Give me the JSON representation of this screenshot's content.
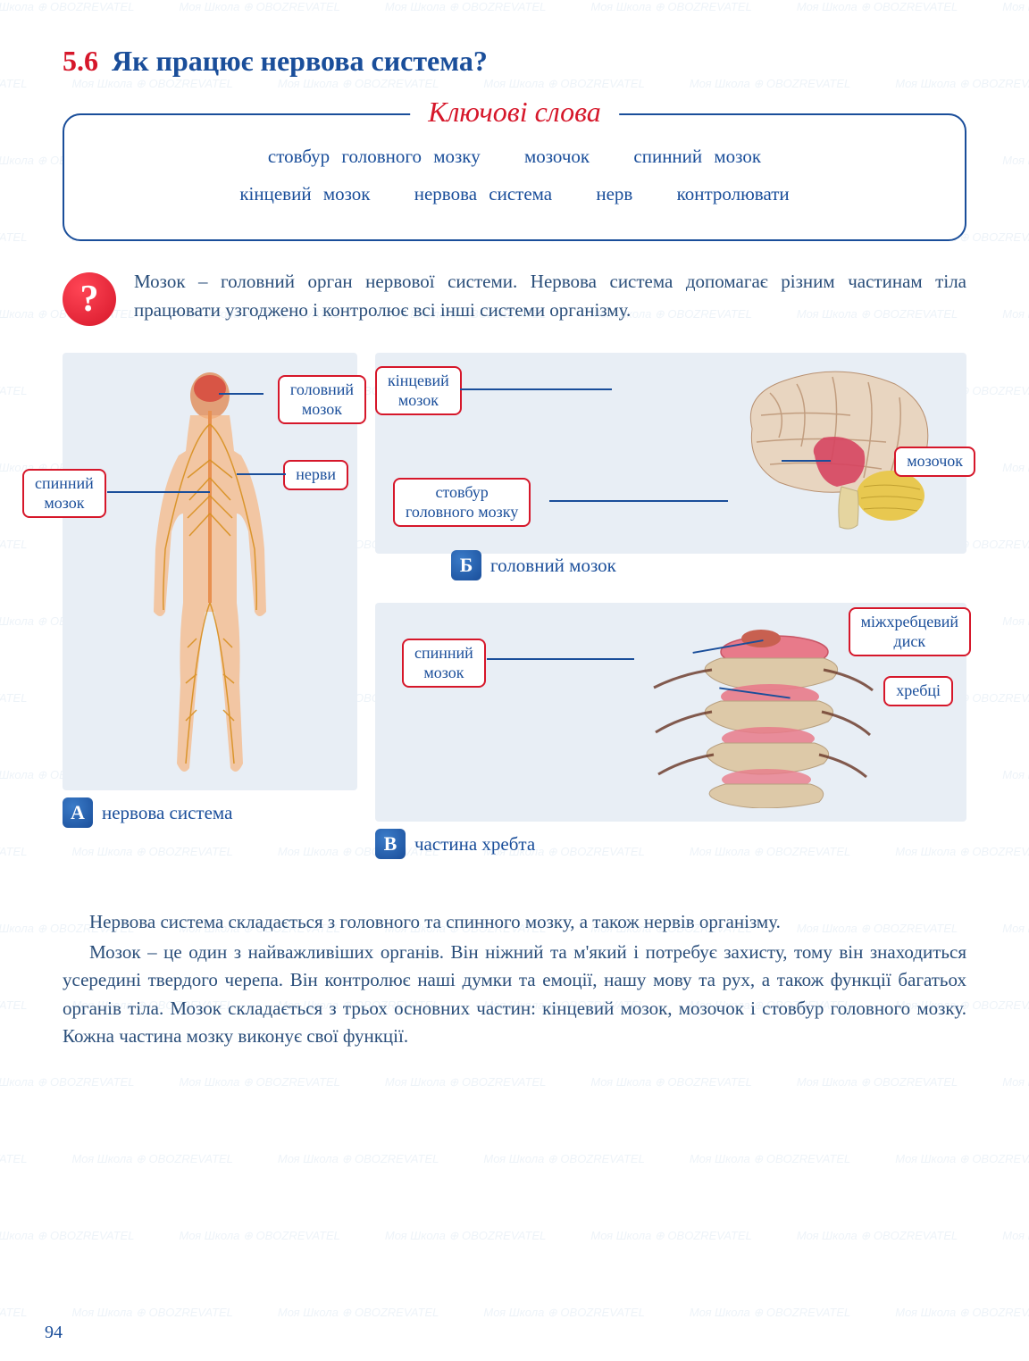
{
  "section": {
    "number": "5.6",
    "title": "Як працює нервова система?"
  },
  "keywords": {
    "title": "Ключові слова",
    "line1": {
      "w1": "стовбур головного мозку",
      "w2": "мозочок",
      "w3": "спинний мозок"
    },
    "line2": {
      "w1": "кінцевий мозок",
      "w2": "нервова система",
      "w3": "нерв",
      "w4": "контролювати"
    }
  },
  "qmark": "?",
  "intro": "Мозок – головний орган нервової системи. Нервова система допомагає різним частинам тіла працювати узгоджено і контролює всі інші системи організму.",
  "diagramA": {
    "badge": "А",
    "caption": "нервова система",
    "labels": {
      "brain": "головний\nмозок",
      "spinal": "спинний\nмозок",
      "nerves": "нерви"
    },
    "colors": {
      "body_outline": "#f5b887",
      "nerves": "#d89020",
      "brain": "#e07040",
      "spine": "#e89050"
    }
  },
  "diagramB": {
    "badge": "Б",
    "caption": "головний мозок",
    "labels": {
      "forebrain": "кінцевий\nмозок",
      "brainstem": "стовбур\nголовного мозку",
      "cerebellum": "мозочок"
    },
    "colors": {
      "cerebrum": "#e8d5c0",
      "cerebrum_line": "#b89070",
      "inner": "#d64560",
      "cerebellum": "#e8c850",
      "stem": "#e5d5a0"
    }
  },
  "diagramC": {
    "badge": "В",
    "caption": "частина хребта",
    "labels": {
      "spinal": "спинний\nмозок",
      "disc": "міжхребцевий\nдиск",
      "vertebrae": "хребці"
    },
    "colors": {
      "bone": "#ddc9a8",
      "bone_dark": "#b8a080",
      "disc": "#e87a8a",
      "cord": "#c86050",
      "nerve": "#704030"
    }
  },
  "paragraphs": {
    "p1": "Нервова система складається з головного та спинного мозку, а також нервів організму.",
    "p2": "Мозок – це один з найважливіших органів. Він ніжний та м'який і потребує захисту, тому він знаходиться усередині твердого черепа. Він контролює наші думки та емоції, нашу мову та рух, а також функції багатьох органів тіла.  Мозок складається з трьох основних частин: кінцевий мозок, мозочок і стовбур головного мозку. Кожна частина мозку виконує свої функції."
  },
  "page_number": "94",
  "watermark_text": "Моя Школа ⊕ OBOZREVATEL"
}
